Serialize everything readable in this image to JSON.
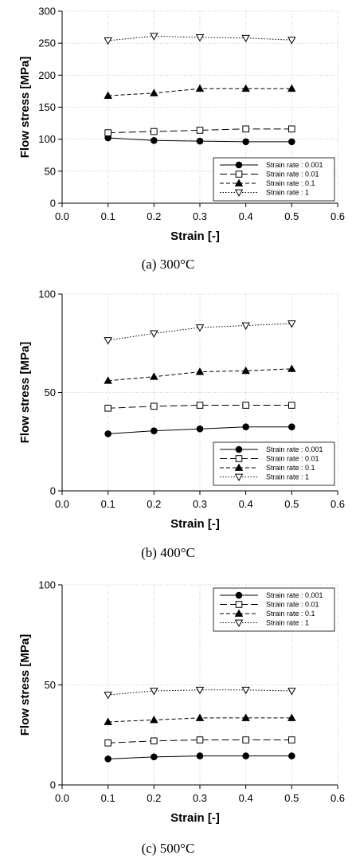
{
  "chart_data": [
    {
      "type": "line",
      "caption": "(a) 300°C",
      "xlabel": "Strain [-]",
      "ylabel": "Flow stress [MPa]",
      "xlim": [
        0,
        0.6
      ],
      "ylim": [
        0,
        300
      ],
      "x_ticks": [
        "0.0",
        "0.1",
        "0.2",
        "0.3",
        "0.4",
        "0.5",
        "0.6"
      ],
      "y_ticks": [
        "0",
        "50",
        "100",
        "150",
        "200",
        "250",
        "300"
      ],
      "grid": true,
      "legend_position": "bottom-right",
      "x": [
        0.1,
        0.2,
        0.3,
        0.4,
        0.5
      ],
      "series": [
        {
          "name": "Strain rate : 0.001",
          "marker": "filled-circle",
          "line": "solid",
          "values": [
            102,
            98,
            97,
            96,
            96
          ]
        },
        {
          "name": "Strain rate : 0.01",
          "marker": "open-square",
          "line": "long-dash",
          "values": [
            110,
            112,
            114,
            116,
            116
          ]
        },
        {
          "name": "Strain rate : 0.1",
          "marker": "filled-triangle",
          "line": "dash",
          "values": [
            168,
            172,
            179,
            179,
            179
          ]
        },
        {
          "name": "Strain rate : 1",
          "marker": "open-triangle-down",
          "line": "dotted",
          "values": [
            254,
            261,
            259,
            258,
            255
          ]
        }
      ]
    },
    {
      "type": "line",
      "caption": "(b) 400°C",
      "xlabel": "Strain [-]",
      "ylabel": "Flow stress [MPa]",
      "xlim": [
        0,
        0.6
      ],
      "ylim": [
        0,
        100
      ],
      "x_ticks": [
        "0.0",
        "0.1",
        "0.2",
        "0.3",
        "0.4",
        "0.5",
        "0.6"
      ],
      "y_ticks": [
        "0",
        "50",
        "100"
      ],
      "grid": true,
      "legend_position": "bottom-right",
      "x": [
        0.1,
        0.2,
        0.3,
        0.4,
        0.5
      ],
      "series": [
        {
          "name": "Strain rate : 0.001",
          "marker": "filled-circle",
          "line": "solid",
          "values": [
            29,
            30.5,
            31.5,
            32.5,
            32.5
          ]
        },
        {
          "name": "Strain rate : 0.01",
          "marker": "open-square",
          "line": "long-dash",
          "values": [
            42,
            43,
            43.5,
            43.5,
            43.5
          ]
        },
        {
          "name": "Strain rate : 0.1",
          "marker": "filled-triangle",
          "line": "dash",
          "values": [
            56,
            58,
            60.5,
            61,
            62
          ]
        },
        {
          "name": "Strain rate : 1",
          "marker": "open-triangle-down",
          "line": "dotted",
          "values": [
            76.5,
            80,
            83,
            84,
            85
          ]
        }
      ]
    },
    {
      "type": "line",
      "caption": "(c) 500°C",
      "xlabel": "Strain [-]",
      "ylabel": "Flow stress [MPa]",
      "xlim": [
        0,
        0.6
      ],
      "ylim": [
        0,
        100
      ],
      "x_ticks": [
        "0.0",
        "0.1",
        "0.2",
        "0.3",
        "0.4",
        "0.5",
        "0.6"
      ],
      "y_ticks": [
        "0",
        "50",
        "100"
      ],
      "grid": true,
      "legend_position": "top-right",
      "x": [
        0.1,
        0.2,
        0.3,
        0.4,
        0.5
      ],
      "series": [
        {
          "name": "Strain rate : 0.001",
          "marker": "filled-circle",
          "line": "solid",
          "values": [
            13,
            14,
            14.5,
            14.5,
            14.5
          ]
        },
        {
          "name": "Strain rate : 0.01",
          "marker": "open-square",
          "line": "long-dash",
          "values": [
            21,
            22,
            22.5,
            22.5,
            22.5
          ]
        },
        {
          "name": "Strain rate : 0.1",
          "marker": "filled-triangle",
          "line": "dash",
          "values": [
            31.5,
            32.5,
            33.5,
            33.5,
            33.5
          ]
        },
        {
          "name": "Strain rate : 1",
          "marker": "open-triangle-down",
          "line": "dotted",
          "values": [
            45,
            47,
            47.5,
            47.5,
            47
          ]
        }
      ]
    }
  ]
}
